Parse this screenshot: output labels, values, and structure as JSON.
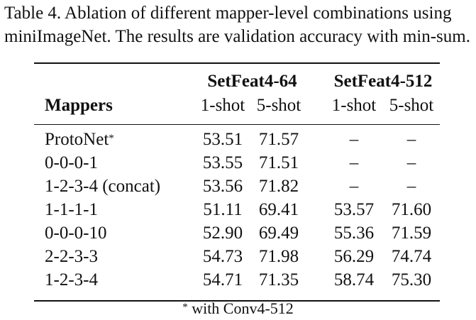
{
  "caption": "Table 4.  Ablation of different mapper-level combinations using miniImageNet. The results are validation accuracy with min-sum.",
  "table": {
    "row_header": "Mappers",
    "groups": [
      {
        "name": "SetFeat4-64",
        "shots": [
          "1-shot",
          "5-shot"
        ]
      },
      {
        "name": "SetFeat4-512",
        "shots": [
          "1-shot",
          "5-shot"
        ]
      }
    ],
    "rows": [
      {
        "label": "ProtoNet",
        "marker": "*",
        "v": [
          "53.51",
          "71.57",
          "–",
          "–"
        ]
      },
      {
        "label": "0-0-0-1",
        "v": [
          "53.55",
          "71.51",
          "–",
          "–"
        ]
      },
      {
        "label": "1-2-3-4 (concat)",
        "v": [
          "53.56",
          "71.82",
          "–",
          "–"
        ]
      },
      {
        "label": "1-1-1-1",
        "v": [
          "51.11",
          "69.41",
          "53.57",
          "71.60"
        ]
      },
      {
        "label": "0-0-0-10",
        "v": [
          "52.90",
          "69.49",
          "55.36",
          "71.59"
        ]
      },
      {
        "label": "2-2-3-3",
        "v": [
          "54.73",
          "71.98",
          "56.29",
          "74.74"
        ]
      },
      {
        "label": "1-2-3-4",
        "v": [
          "54.71",
          "71.35",
          "58.74",
          "75.30"
        ]
      }
    ],
    "footnote_marker": "*",
    "footnote": "with Conv4-512"
  }
}
